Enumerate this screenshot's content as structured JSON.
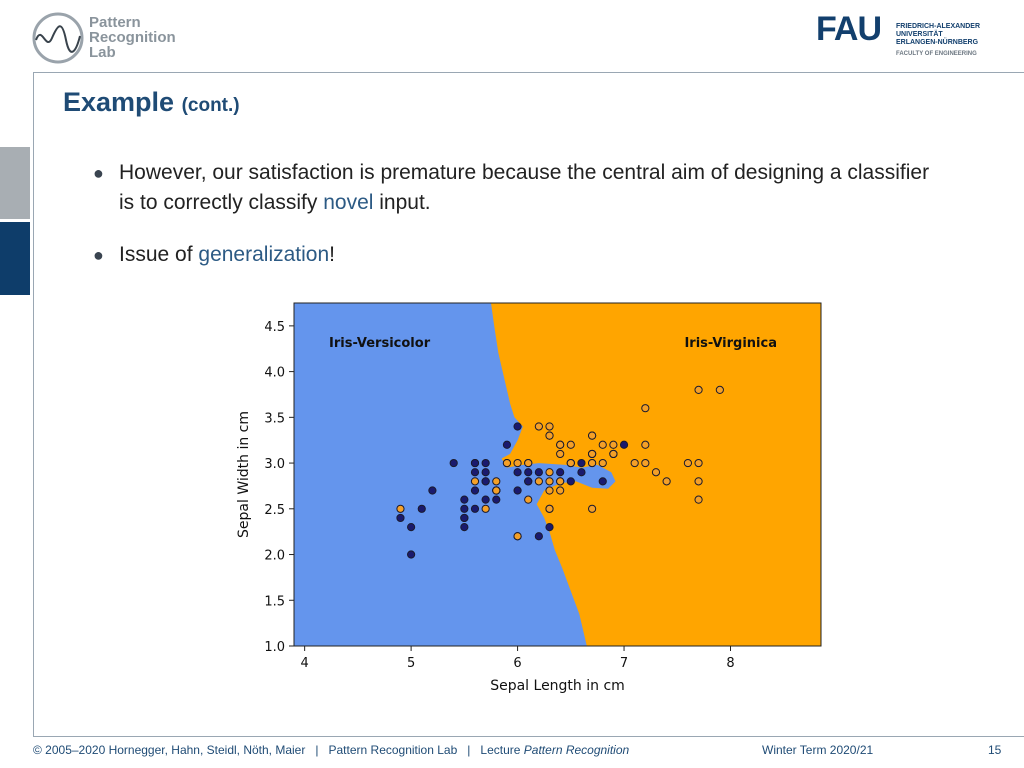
{
  "header": {
    "lab_logo": {
      "line1": "Pattern",
      "line2": "Recognition",
      "line3": "Lab"
    },
    "university_logo": {
      "mark": "FAU",
      "line1": "FRIEDRICH-ALEXANDER",
      "line2": "UNIVERSITÄT",
      "line3": "ERLANGEN-NÜRNBERG",
      "faculty": "FACULTY OF ENGINEERING"
    }
  },
  "slide": {
    "title": "Example",
    "title_suffix": "(cont.)",
    "bullets": [
      {
        "before": "However, our satisfaction is premature because the central aim of designing a classifier is to correctly classify ",
        "highlight": "novel",
        "after": " input."
      },
      {
        "before": "Issue of ",
        "highlight": "generalization",
        "after": "!"
      }
    ]
  },
  "footer": {
    "copyright": "© 2005–2020 Hornegger, Hahn, Steidl, Nöth, Maier",
    "sep1": "|",
    "lab": "Pattern Recognition Lab",
    "sep2": "|",
    "lecture_prefix": "Lecture",
    "lecture_name": "Pattern Recognition",
    "term": "Winter Term 2020/21",
    "page": "15"
  },
  "colors": {
    "versicolor_region": "#6495ed",
    "virginica_region": "#ffa500",
    "versicolor_point": "#1a1a6e",
    "virginica_point": "#f4a028",
    "accent": "#1f4b75"
  },
  "chart_data": {
    "type": "scatter",
    "xlabel": "Sepal Length in cm",
    "ylabel": "Sepal Width in cm",
    "xlim": [
      3.9,
      8.85
    ],
    "ylim": [
      1.0,
      4.75
    ],
    "xticks": [
      "4",
      "5",
      "6",
      "7",
      "8"
    ],
    "xtick_values": [
      4,
      5,
      6,
      7,
      8
    ],
    "yticks": [
      "1.0",
      "1.5",
      "2.0",
      "2.5",
      "3.0",
      "3.5",
      "4.0",
      "4.5"
    ],
    "ytick_values": [
      1.0,
      1.5,
      2.0,
      2.5,
      3.0,
      3.5,
      4.0,
      4.5
    ],
    "regions": [
      {
        "label": "Iris-Versicolor"
      },
      {
        "label": "Iris-Virginica"
      }
    ],
    "boundary": [
      [
        5.75,
        4.75
      ],
      [
        5.78,
        4.5
      ],
      [
        5.82,
        4.2
      ],
      [
        5.88,
        3.9
      ],
      [
        5.93,
        3.65
      ],
      [
        5.97,
        3.5
      ],
      [
        6.05,
        3.4
      ],
      [
        6.0,
        3.25
      ],
      [
        5.93,
        3.1
      ],
      [
        5.85,
        3.05
      ],
      [
        5.9,
        2.95
      ],
      [
        6.05,
        2.98
      ],
      [
        6.2,
        3.0
      ],
      [
        6.45,
        2.98
      ],
      [
        6.6,
        2.95
      ],
      [
        6.75,
        2.98
      ],
      [
        6.88,
        2.9
      ],
      [
        6.92,
        2.8
      ],
      [
        6.85,
        2.72
      ],
      [
        6.7,
        2.73
      ],
      [
        6.55,
        2.8
      ],
      [
        6.4,
        2.78
      ],
      [
        6.25,
        2.7
      ],
      [
        6.18,
        2.55
      ],
      [
        6.25,
        2.4
      ],
      [
        6.3,
        2.25
      ],
      [
        6.35,
        2.05
      ],
      [
        6.42,
        1.85
      ],
      [
        6.5,
        1.6
      ],
      [
        6.58,
        1.35
      ],
      [
        6.65,
        1.0
      ]
    ],
    "series": [
      {
        "name": "Iris-Versicolor",
        "points": [
          [
            7.0,
            3.2
          ],
          [
            6.4,
            3.2
          ],
          [
            6.9,
            3.1
          ],
          [
            5.5,
            2.3
          ],
          [
            6.5,
            2.8
          ],
          [
            5.7,
            2.8
          ],
          [
            6.3,
            3.3
          ],
          [
            4.9,
            2.4
          ],
          [
            6.6,
            2.9
          ],
          [
            5.2,
            2.7
          ],
          [
            5.0,
            2.0
          ],
          [
            5.9,
            3.0
          ],
          [
            6.0,
            2.2
          ],
          [
            6.1,
            2.9
          ],
          [
            5.6,
            2.9
          ],
          [
            6.7,
            3.1
          ],
          [
            5.6,
            3.0
          ],
          [
            5.8,
            2.7
          ],
          [
            6.2,
            2.2
          ],
          [
            5.6,
            2.5
          ],
          [
            5.9,
            3.2
          ],
          [
            6.1,
            2.8
          ],
          [
            6.3,
            2.5
          ],
          [
            6.1,
            2.8
          ],
          [
            6.4,
            2.9
          ],
          [
            6.6,
            3.0
          ],
          [
            6.8,
            2.8
          ],
          [
            6.7,
            3.0
          ],
          [
            6.0,
            2.9
          ],
          [
            5.7,
            2.6
          ],
          [
            5.5,
            2.4
          ],
          [
            5.5,
            2.4
          ],
          [
            5.8,
            2.7
          ],
          [
            6.0,
            2.7
          ],
          [
            5.4,
            3.0
          ],
          [
            6.0,
            3.4
          ],
          [
            6.7,
            3.1
          ],
          [
            6.3,
            2.3
          ],
          [
            5.6,
            3.0
          ],
          [
            5.5,
            2.5
          ],
          [
            5.5,
            2.6
          ],
          [
            6.1,
            3.0
          ],
          [
            5.8,
            2.6
          ],
          [
            5.0,
            2.3
          ],
          [
            5.6,
            2.7
          ],
          [
            5.7,
            3.0
          ],
          [
            5.7,
            2.9
          ],
          [
            6.2,
            2.9
          ],
          [
            5.1,
            2.5
          ],
          [
            5.7,
            2.8
          ]
        ]
      },
      {
        "name": "Iris-Virginica",
        "points": [
          [
            6.3,
            3.3
          ],
          [
            5.8,
            2.7
          ],
          [
            7.1,
            3.0
          ],
          [
            6.3,
            2.9
          ],
          [
            6.5,
            3.0
          ],
          [
            7.6,
            3.0
          ],
          [
            4.9,
            2.5
          ],
          [
            7.3,
            2.9
          ],
          [
            6.7,
            2.5
          ],
          [
            7.2,
            3.6
          ],
          [
            6.5,
            3.2
          ],
          [
            6.4,
            2.7
          ],
          [
            6.8,
            3.0
          ],
          [
            5.7,
            2.5
          ],
          [
            5.8,
            2.8
          ],
          [
            6.4,
            3.2
          ],
          [
            6.5,
            3.0
          ],
          [
            7.7,
            3.8
          ],
          [
            7.7,
            2.6
          ],
          [
            6.0,
            2.2
          ],
          [
            6.9,
            3.2
          ],
          [
            5.6,
            2.8
          ],
          [
            7.7,
            2.8
          ],
          [
            6.3,
            2.7
          ],
          [
            6.7,
            3.3
          ],
          [
            7.2,
            3.2
          ],
          [
            6.2,
            2.8
          ],
          [
            6.1,
            3.0
          ],
          [
            6.4,
            2.8
          ],
          [
            7.2,
            3.0
          ],
          [
            7.4,
            2.8
          ],
          [
            7.9,
            3.8
          ],
          [
            6.4,
            2.8
          ],
          [
            6.3,
            2.8
          ],
          [
            6.1,
            2.6
          ],
          [
            7.7,
            3.0
          ],
          [
            6.3,
            3.4
          ],
          [
            6.4,
            3.1
          ],
          [
            6.0,
            3.0
          ],
          [
            6.9,
            3.1
          ],
          [
            6.7,
            3.1
          ],
          [
            6.9,
            3.1
          ],
          [
            5.8,
            2.7
          ],
          [
            6.8,
            3.2
          ],
          [
            6.7,
            3.3
          ],
          [
            6.7,
            3.0
          ],
          [
            6.3,
            2.5
          ],
          [
            6.5,
            3.0
          ],
          [
            6.2,
            3.4
          ],
          [
            5.9,
            3.0
          ]
        ]
      }
    ]
  }
}
